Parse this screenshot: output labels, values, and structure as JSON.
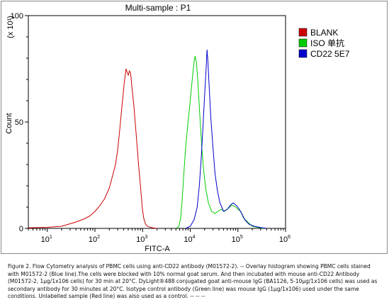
{
  "chart_data": {
    "type": "line",
    "title": "Multi-sample : P1",
    "xlabel": "FITC-A",
    "ylabel": "Count",
    "y_scale_label": "(x 10¹)",
    "x_scale": "log",
    "xlim": [
      4,
      1000000
    ],
    "ylim": [
      0,
      100
    ],
    "x_ticks": [
      {
        "value": 10,
        "base": "10",
        "exp": "1"
      },
      {
        "value": 100,
        "base": "10",
        "exp": "2"
      },
      {
        "value": 1000,
        "base": "10",
        "exp": "3"
      },
      {
        "value": 10000,
        "base": "10",
        "exp": "4"
      },
      {
        "value": 100000,
        "base": "10",
        "exp": "5"
      },
      {
        "value": 1000000,
        "base": "10",
        "exp": "6"
      }
    ],
    "y_ticks": [
      {
        "value": 0,
        "label": "0"
      },
      {
        "value": 50,
        "label": "50"
      },
      {
        "value": 100,
        "label": "100"
      }
    ],
    "legend_position": "right",
    "series": [
      {
        "name": "BLANK",
        "color": "#cc0000",
        "points": [
          [
            4,
            0.3
          ],
          [
            10,
            0.5
          ],
          [
            20,
            1
          ],
          [
            40,
            3
          ],
          [
            60,
            4.5
          ],
          [
            80,
            6
          ],
          [
            100,
            8
          ],
          [
            130,
            11
          ],
          [
            160,
            14
          ],
          [
            200,
            19
          ],
          [
            230,
            24
          ],
          [
            270,
            30
          ],
          [
            300,
            37
          ],
          [
            330,
            46
          ],
          [
            360,
            55
          ],
          [
            390,
            63
          ],
          [
            410,
            68
          ],
          [
            450,
            75
          ],
          [
            480,
            73
          ],
          [
            500,
            72
          ],
          [
            530,
            74
          ],
          [
            560,
            73
          ],
          [
            600,
            66
          ],
          [
            660,
            57
          ],
          [
            700,
            50
          ],
          [
            760,
            40
          ],
          [
            820,
            30
          ],
          [
            900,
            20
          ],
          [
            980,
            10
          ],
          [
            1050,
            5
          ],
          [
            1150,
            2
          ],
          [
            1300,
            0.8
          ],
          [
            1600,
            0.3
          ],
          [
            2000,
            0
          ]
        ]
      },
      {
        "name": "ISO 单抗",
        "color": "#00cc00",
        "points": [
          [
            5000,
            0
          ],
          [
            5800,
            1
          ],
          [
            6300,
            5
          ],
          [
            6800,
            14
          ],
          [
            7300,
            25
          ],
          [
            8000,
            38
          ],
          [
            9000,
            50
          ],
          [
            10000,
            60
          ],
          [
            11000,
            70
          ],
          [
            12000,
            78
          ],
          [
            12600,
            81
          ],
          [
            13500,
            78
          ],
          [
            14500,
            68
          ],
          [
            16000,
            52
          ],
          [
            17500,
            38
          ],
          [
            19000,
            28
          ],
          [
            21000,
            19
          ],
          [
            24000,
            12
          ],
          [
            28000,
            8
          ],
          [
            33000,
            7
          ],
          [
            38000,
            8
          ],
          [
            45000,
            9
          ],
          [
            52000,
            8
          ],
          [
            60000,
            9
          ],
          [
            75000,
            11
          ],
          [
            90000,
            10
          ],
          [
            100000,
            9
          ],
          [
            115000,
            8
          ],
          [
            130000,
            5
          ],
          [
            160000,
            3
          ],
          [
            200000,
            1
          ],
          [
            260000,
            0.5
          ],
          [
            350000,
            0
          ]
        ]
      },
      {
        "name": "CD22 5E7",
        "color": "#0000cc",
        "points": [
          [
            8000,
            0
          ],
          [
            10000,
            1
          ],
          [
            12000,
            4
          ],
          [
            14000,
            10
          ],
          [
            15500,
            20
          ],
          [
            17000,
            33
          ],
          [
            18500,
            48
          ],
          [
            20000,
            62
          ],
          [
            21500,
            75
          ],
          [
            22500,
            84
          ],
          [
            23500,
            78
          ],
          [
            25000,
            66
          ],
          [
            27000,
            52
          ],
          [
            30000,
            38
          ],
          [
            33000,
            26
          ],
          [
            37000,
            18
          ],
          [
            42000,
            12
          ],
          [
            50000,
            8
          ],
          [
            60000,
            9
          ],
          [
            70000,
            11
          ],
          [
            80000,
            12
          ],
          [
            90000,
            11
          ],
          [
            100000,
            10
          ],
          [
            120000,
            7
          ],
          [
            140000,
            4
          ],
          [
            170000,
            2
          ],
          [
            220000,
            1
          ],
          [
            300000,
            0.4
          ],
          [
            400000,
            0
          ]
        ]
      }
    ]
  },
  "caption": "Figure 2. Flow Cytometry analysis of PBMC cells using anti-CD22 antibody (M01572-2).  -- Overlay histogram showing PBMC cells stained with M01572-2 (Blue line).The cells were blocked with 10% normal goat serum. And then incubated with mouse anti-CD22 Antibody (M01572-2, 1μg/1x106 cells) for 30 min at 20°C. DyLight®488 conjugated goat anti-mouse IgG (BA1126, 5-10μg/1x106 cells) was used as secondary antibody for 30 minutes at 20°C. Isotype control antibody (Green line) was mouse IgG (1μg/1x106) used under the same conditions. Unlabelled sample (Red line) was also used as a control. -- -- --"
}
